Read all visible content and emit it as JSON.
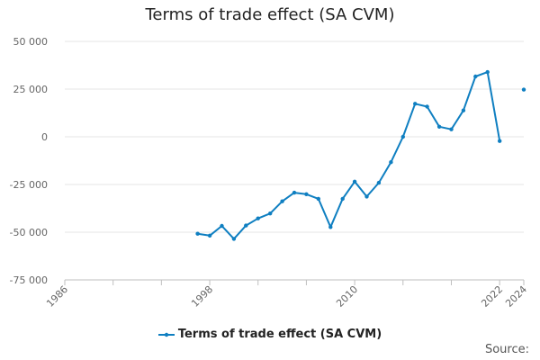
{
  "chart_data": {
    "type": "line",
    "title": "Terms of trade effect (SA CVM)",
    "xlabel": "",
    "ylabel": "",
    "xlim": [
      1986,
      2024
    ],
    "ylim": [
      -75000,
      50000
    ],
    "y_ticks": [
      "50 000",
      "25 000",
      "0",
      "-25 000",
      "-50 000",
      "-75 000"
    ],
    "y_tick_values": [
      50000,
      25000,
      0,
      -25000,
      -50000,
      -75000
    ],
    "x_ticks": [
      "1986",
      "1998",
      "2010",
      "2022",
      "2024"
    ],
    "x_tick_values": [
      1986,
      1998,
      2010,
      2022,
      2024
    ],
    "grid": "horizontal",
    "legend_position": "bottom",
    "series": [
      {
        "name": "Terms of trade effect (SA CVM)",
        "color": "#0f7fc1",
        "points": [
          {
            "x": 1997,
            "y": -50800
          },
          {
            "x": 1998,
            "y": -51800
          },
          {
            "x": 1999,
            "y": -46700
          },
          {
            "x": 2000,
            "y": -53500
          },
          {
            "x": 2001,
            "y": -46500
          },
          {
            "x": 2002,
            "y": -42800
          },
          {
            "x": 2003,
            "y": -40200
          },
          {
            "x": 2004,
            "y": -33800
          },
          {
            "x": 2005,
            "y": -29300
          },
          {
            "x": 2006,
            "y": -30100
          },
          {
            "x": 2007,
            "y": -32500
          },
          {
            "x": 2008,
            "y": -47300
          },
          {
            "x": 2009,
            "y": -32500
          },
          {
            "x": 2010,
            "y": -23500
          },
          {
            "x": 2011,
            "y": -31300
          },
          {
            "x": 2012,
            "y": -24100
          },
          {
            "x": 2013,
            "y": -13300
          },
          {
            "x": 2014,
            "y": 0
          },
          {
            "x": 2015,
            "y": 17300
          },
          {
            "x": 2016,
            "y": 15800
          },
          {
            "x": 2017,
            "y": 5300
          },
          {
            "x": 2018,
            "y": 3900
          },
          {
            "x": 2019,
            "y": 13800
          },
          {
            "x": 2020,
            "y": 31600
          },
          {
            "x": 2021,
            "y": 33900
          },
          {
            "x": 2022,
            "y": -2200
          },
          {
            "x": 2024,
            "y": 24700,
            "isolated": true
          }
        ]
      }
    ]
  },
  "footer": {
    "source_label": "Source:"
  }
}
